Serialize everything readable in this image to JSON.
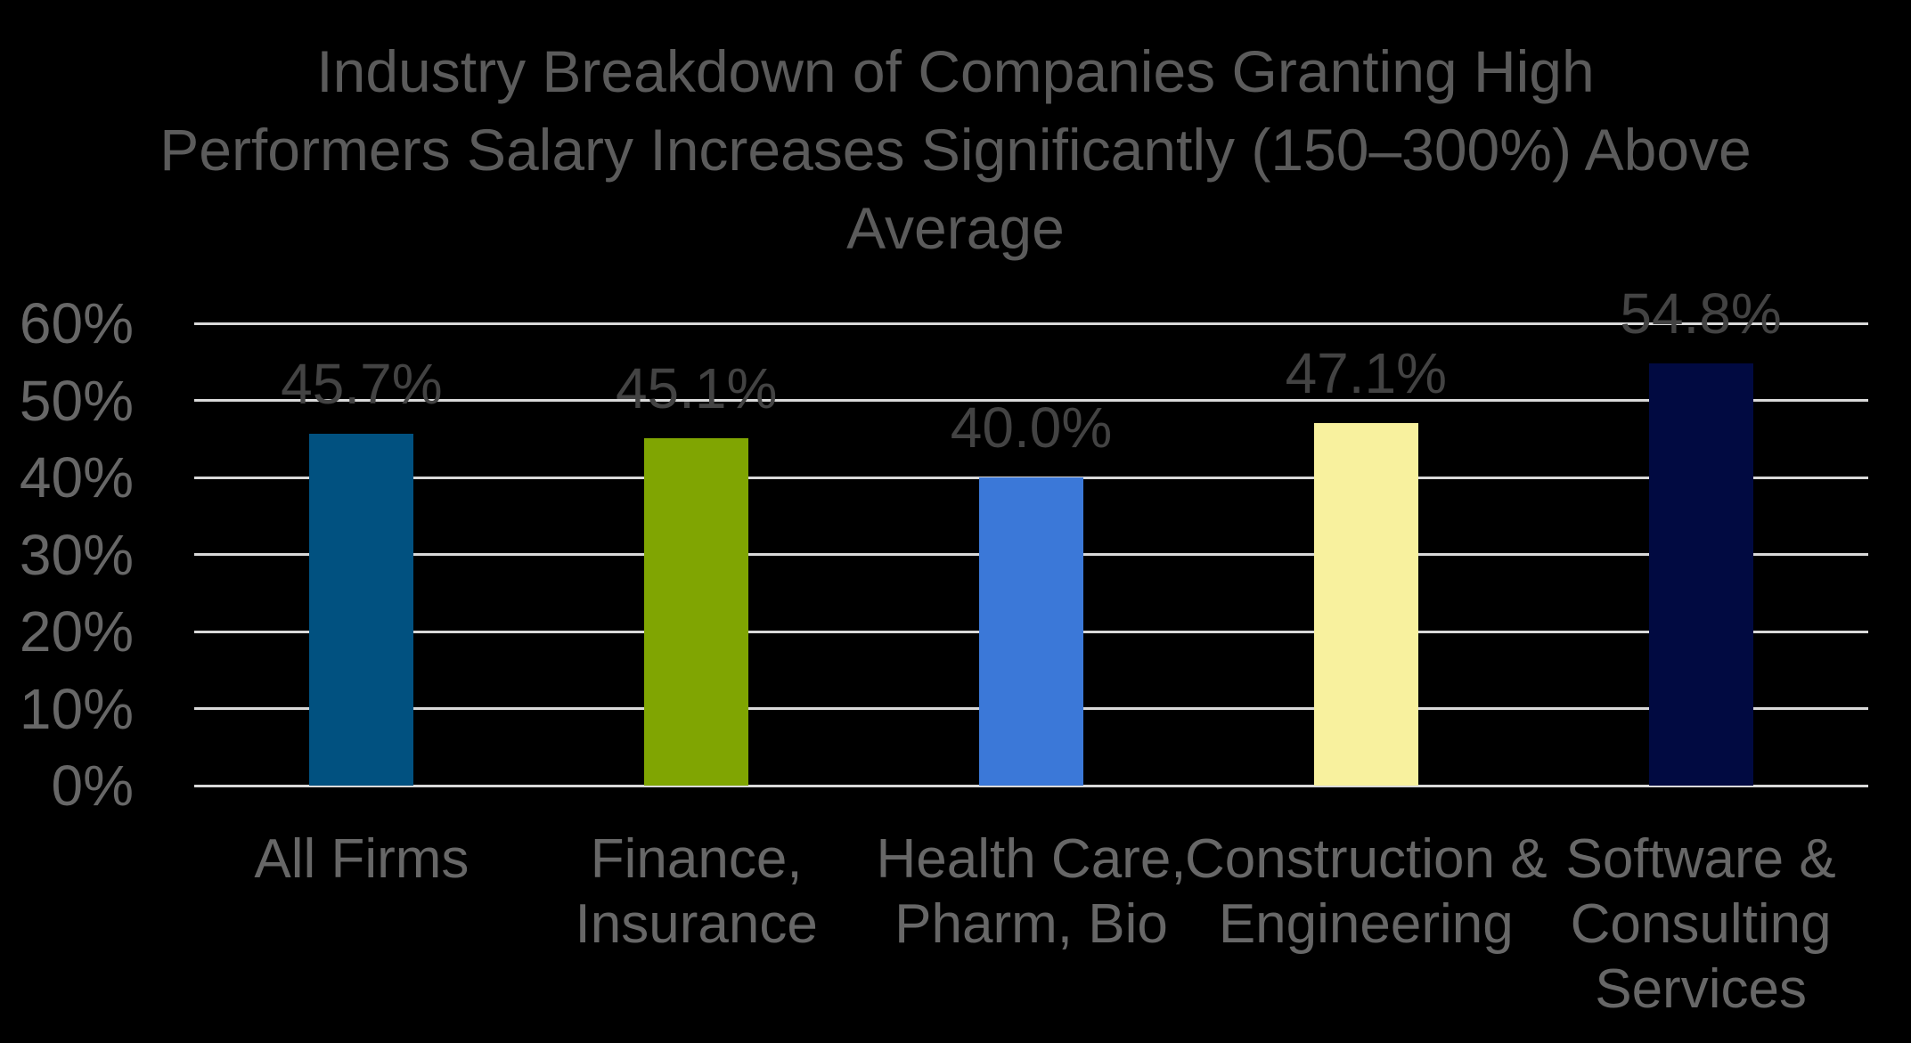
{
  "chart_data": {
    "type": "bar",
    "title": "Industry Breakdown of Companies Granting High Performers Salary Increases Significantly (150–300%) Above Average",
    "title_lines": [
      "Industry Breakdown of Companies Granting High",
      "Performers Salary Increases Significantly (150–300%) Above",
      "Average"
    ],
    "categories": [
      "All Firms",
      "Finance, Insurance",
      "Health Care, Pharm, Bio",
      "Construction & Engineering",
      "Software & Consulting Services"
    ],
    "category_lines": [
      [
        "All Firms"
      ],
      [
        "Finance,",
        "Insurance"
      ],
      [
        "Health Care,",
        "Pharm, Bio"
      ],
      [
        "Construction &",
        "Engineering"
      ],
      [
        "Software &",
        "Consulting",
        "Services"
      ]
    ],
    "values": [
      45.7,
      45.1,
      40.0,
      47.1,
      54.8
    ],
    "data_labels": [
      "45.7%",
      "45.1%",
      "40.0%",
      "47.1%",
      "54.8%"
    ],
    "y_ticks": [
      "60%",
      "50%",
      "40%",
      "30%",
      "20%",
      "10%",
      "0%"
    ],
    "ylim": [
      0,
      60
    ],
    "grid": true,
    "legend_position": "none",
    "xlabel": "",
    "ylabel": "",
    "colors": {
      "background": "#000000",
      "gridline": "#D9D9D9",
      "title_text": "#5B5B5B",
      "axis_label_text": "#676767",
      "data_label_text": "#434343",
      "bars": [
        "#015180",
        "#80A502",
        "#3B78D8",
        "#F8F19E",
        "#010A41"
      ]
    }
  }
}
